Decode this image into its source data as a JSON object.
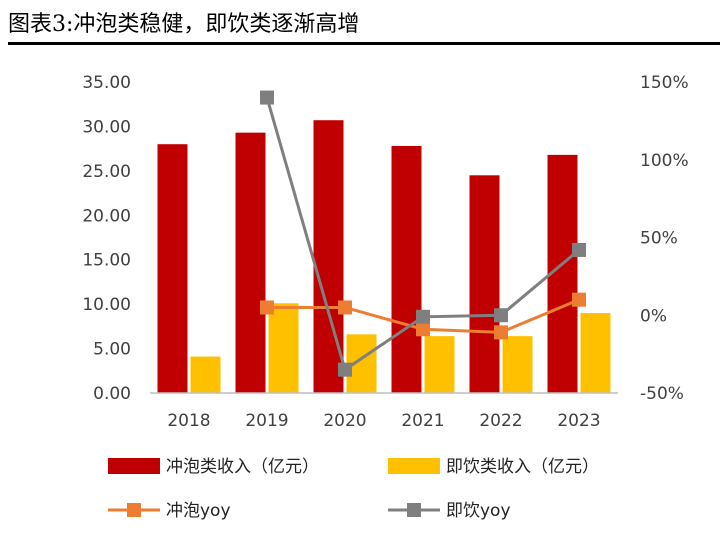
{
  "page": {
    "title": "图表3:冲泡类稳健，即饮类逐渐高增"
  },
  "chart_data": {
    "type": "bar",
    "categories": [
      "2018",
      "2019",
      "2020",
      "2021",
      "2022",
      "2023"
    ],
    "series": [
      {
        "name": "冲泡类收入（亿元）",
        "type": "bar",
        "axis": "left",
        "color": "#c00000",
        "values": [
          28.0,
          29.3,
          30.7,
          27.8,
          24.5,
          26.8
        ]
      },
      {
        "name": "即饮类收入（亿元）",
        "type": "bar",
        "axis": "left",
        "color": "#ffc000",
        "values": [
          4.1,
          10.1,
          6.6,
          6.4,
          6.4,
          9.0
        ]
      },
      {
        "name": "冲泡yoy",
        "type": "line",
        "axis": "right",
        "color": "#ed7d31",
        "marker": "square",
        "values": [
          null,
          5,
          5,
          -9,
          -11,
          10
        ]
      },
      {
        "name": "即饮yoy",
        "type": "line",
        "axis": "right",
        "color": "#7f7f7f",
        "marker": "square",
        "values": [
          null,
          140,
          -35,
          -1,
          0,
          42
        ]
      }
    ],
    "y_left": {
      "min": 0,
      "max": 35,
      "ticks": [
        "0.00",
        "5.00",
        "10.00",
        "15.00",
        "20.00",
        "25.00",
        "30.00",
        "35.00"
      ]
    },
    "y_right": {
      "min": -50,
      "max": 150,
      "ticks": [
        "-50%",
        "0%",
        "50%",
        "100%",
        "150%"
      ]
    },
    "grid": false,
    "legend_position": "bottom"
  }
}
